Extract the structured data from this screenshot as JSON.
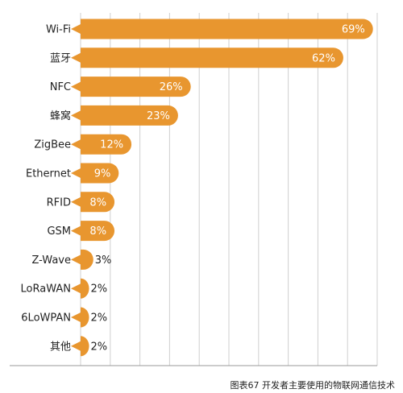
{
  "chart_data": {
    "type": "bar",
    "orientation": "horizontal",
    "categories": [
      "Wi-Fi",
      "蓝牙",
      "NFC",
      "蜂窝",
      "ZigBee",
      "Ethernet",
      "RFID",
      "GSM",
      "Z-Wave",
      "LoRaWAN",
      "6LoWPAN",
      "其他"
    ],
    "values": [
      69,
      62,
      26,
      23,
      12,
      9,
      8,
      8,
      3,
      2,
      2,
      2
    ],
    "value_labels": [
      "69%",
      "62%",
      "26%",
      "23%",
      "12%",
      "9%",
      "8%",
      "8%",
      "3%",
      "2%",
      "2%",
      "2%"
    ],
    "xlim": [
      0,
      70
    ],
    "grid": true,
    "title": "",
    "xlabel": "",
    "ylabel": "",
    "bar_color": "#E8962F",
    "grid_color": "#cfcfcf"
  },
  "caption": "图表67  开发者主要使用的物联网通信技术"
}
